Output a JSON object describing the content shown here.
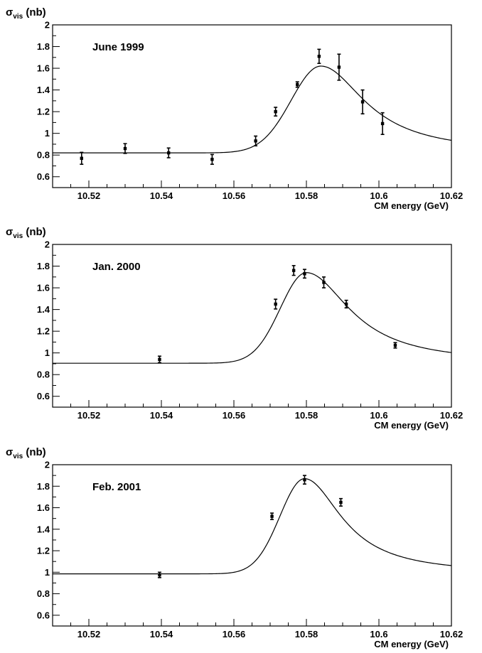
{
  "chart_data": [
    {
      "type": "scatter",
      "title": "June 1999",
      "ylabel_symbol": "σ",
      "ylabel_sub": "vis",
      "ylabel_unit": "(nb)",
      "xlabel": "CM energy (GeV)",
      "xlim": [
        10.51,
        10.62
      ],
      "ylim": [
        0.5,
        2.0
      ],
      "xticks": [
        "10.52",
        "10.54",
        "10.56",
        "10.58",
        "10.6",
        "10.62"
      ],
      "yticks": [
        "0.6",
        "0.8",
        "1",
        "1.2",
        "1.4",
        "1.6",
        "1.8",
        "2"
      ],
      "series": [
        {
          "points": [
            {
              "x": 10.518,
              "y": 0.77,
              "err": 0.055
            },
            {
              "x": 10.53,
              "y": 0.86,
              "err": 0.045
            },
            {
              "x": 10.542,
              "y": 0.82,
              "err": 0.045
            },
            {
              "x": 10.554,
              "y": 0.76,
              "err": 0.045
            },
            {
              "x": 10.566,
              "y": 0.93,
              "err": 0.045
            },
            {
              "x": 10.5715,
              "y": 1.2,
              "err": 0.04
            },
            {
              "x": 10.5775,
              "y": 1.45,
              "err": 0.025
            },
            {
              "x": 10.5835,
              "y": 1.71,
              "err": 0.065
            },
            {
              "x": 10.589,
              "y": 1.61,
              "err": 0.12
            },
            {
              "x": 10.5955,
              "y": 1.29,
              "err": 0.11
            },
            {
              "x": 10.601,
              "y": 1.09,
              "err": 0.1
            }
          ]
        }
      ],
      "fit": {
        "base": 0.82,
        "amp": 0.8,
        "peak": 10.584,
        "sigL": 0.0082,
        "gammaR": 0.0148
      }
    },
    {
      "type": "scatter",
      "title": "Jan. 2000",
      "ylabel_symbol": "σ",
      "ylabel_sub": "vis",
      "ylabel_unit": "(nb)",
      "xlabel": "CM energy (GeV)",
      "xlim": [
        10.51,
        10.62
      ],
      "ylim": [
        0.5,
        2.0
      ],
      "xticks": [
        "10.52",
        "10.54",
        "10.56",
        "10.58",
        "10.6",
        "10.62"
      ],
      "yticks": [
        "0.6",
        "0.8",
        "1",
        "1.2",
        "1.4",
        "1.6",
        "1.8",
        "2"
      ],
      "series": [
        {
          "points": [
            {
              "x": 10.5395,
              "y": 0.94,
              "err": 0.03
            },
            {
              "x": 10.5715,
              "y": 1.45,
              "err": 0.045
            },
            {
              "x": 10.5765,
              "y": 1.76,
              "err": 0.045
            },
            {
              "x": 10.5795,
              "y": 1.73,
              "err": 0.04
            },
            {
              "x": 10.5848,
              "y": 1.65,
              "err": 0.05
            },
            {
              "x": 10.591,
              "y": 1.45,
              "err": 0.035
            },
            {
              "x": 10.6045,
              "y": 1.07,
              "err": 0.025
            }
          ]
        }
      ],
      "fit": {
        "base": 0.905,
        "amp": 0.835,
        "peak": 10.58,
        "sigL": 0.0072,
        "gammaR": 0.0146
      }
    },
    {
      "type": "scatter",
      "title": "Feb. 2001",
      "ylabel_symbol": "σ",
      "ylabel_sub": "vis",
      "ylabel_unit": "(nb)",
      "xlabel": "CM energy (GeV)",
      "xlim": [
        10.51,
        10.62
      ],
      "ylim": [
        0.5,
        2.0
      ],
      "xticks": [
        "10.52",
        "10.54",
        "10.56",
        "10.58",
        "10.6",
        "10.62"
      ],
      "yticks": [
        "0.6",
        "0.8",
        "1",
        "1.2",
        "1.4",
        "1.6",
        "1.8",
        "2"
      ],
      "series": [
        {
          "points": [
            {
              "x": 10.5395,
              "y": 0.975,
              "err": 0.025
            },
            {
              "x": 10.5705,
              "y": 1.52,
              "err": 0.03
            },
            {
              "x": 10.5795,
              "y": 1.86,
              "err": 0.04
            },
            {
              "x": 10.5895,
              "y": 1.65,
              "err": 0.035
            }
          ]
        }
      ],
      "fit": {
        "base": 0.985,
        "amp": 0.885,
        "peak": 10.5795,
        "sigL": 0.0068,
        "gammaR": 0.0125
      }
    }
  ]
}
